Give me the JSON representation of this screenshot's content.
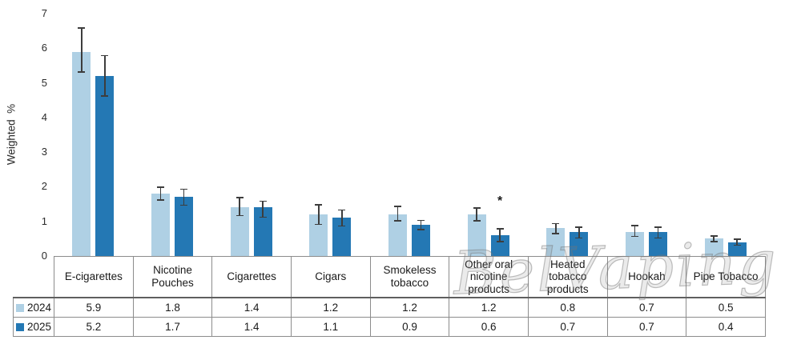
{
  "watermark": {
    "text": "BelVaping"
  },
  "chart_data": {
    "type": "bar",
    "title": "",
    "xlabel": "",
    "ylabel": "Weighted  %",
    "ylim": [
      0,
      7
    ],
    "yticks": [
      0,
      1,
      2,
      3,
      4,
      5,
      6,
      7
    ],
    "grid": false,
    "legend_position": "table-left",
    "categories": [
      "E-cigarettes",
      "Nicotine Pouches",
      "Cigarettes",
      "Cigars",
      "Smokeless tobacco",
      "Other oral nicotine products",
      "Heated tobacco products",
      "Hookah",
      "Pipe Tobacco"
    ],
    "series": [
      {
        "name": "2024",
        "color": "#AFD0E4",
        "values": [
          5.9,
          1.8,
          1.4,
          1.2,
          1.2,
          1.2,
          0.8,
          0.7,
          0.5
        ],
        "error_low": [
          5.3,
          1.6,
          1.15,
          0.9,
          1.0,
          1.0,
          0.63,
          0.55,
          0.4
        ],
        "error_high": [
          6.6,
          2.0,
          1.7,
          1.5,
          1.45,
          1.4,
          0.95,
          0.9,
          0.6
        ]
      },
      {
        "name": "2025",
        "color": "#2478B4",
        "values": [
          5.2,
          1.7,
          1.4,
          1.1,
          0.9,
          0.6,
          0.7,
          0.7,
          0.4
        ],
        "error_low": [
          4.6,
          1.45,
          1.1,
          0.85,
          0.75,
          0.4,
          0.5,
          0.5,
          0.3
        ],
        "error_high": [
          5.8,
          1.95,
          1.6,
          1.35,
          1.05,
          0.8,
          0.85,
          0.85,
          0.5
        ]
      }
    ],
    "annotation": {
      "text": "*",
      "category_index": 5,
      "series_index": 1,
      "y": 1.58
    },
    "colors": {
      "error_bar": "#3d3d3d",
      "axis_line": "#9a9a9a",
      "table_border": "#8c8c8c",
      "text": "#1a1a1a"
    }
  }
}
